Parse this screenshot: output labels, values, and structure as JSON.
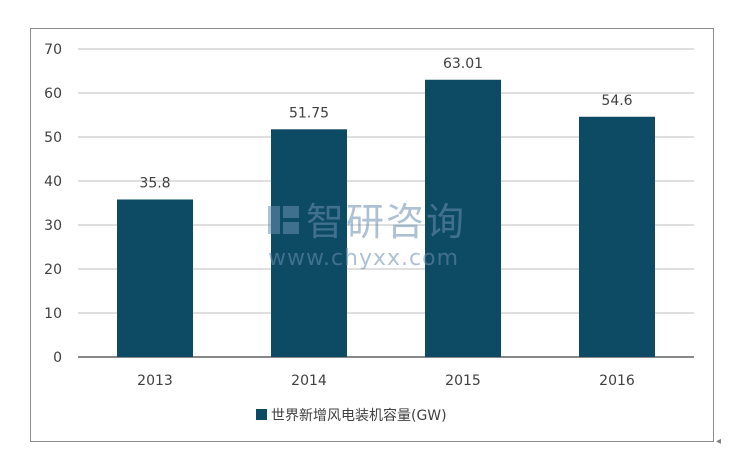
{
  "chart_data": {
    "type": "bar",
    "categories": [
      "2013",
      "2014",
      "2015",
      "2016"
    ],
    "series": [
      {
        "name": "世界新增风电装机容量(GW)",
        "values": [
          35.8,
          51.75,
          63.01,
          54.6
        ],
        "labels": [
          "35.8",
          "51.75",
          "63.01",
          "54.6"
        ]
      }
    ],
    "ylim": [
      0,
      70
    ],
    "yticks": [
      0,
      10,
      20,
      30,
      40,
      50,
      60,
      70
    ],
    "grid": true,
    "legend": "bottom",
    "colors": {
      "bar": "#0d4a63",
      "grid": "#bfbfbf",
      "axis": "#404040",
      "text": "#404040"
    }
  },
  "watermark": {
    "brand": "智研咨询",
    "url": "www.chyxx.com"
  }
}
